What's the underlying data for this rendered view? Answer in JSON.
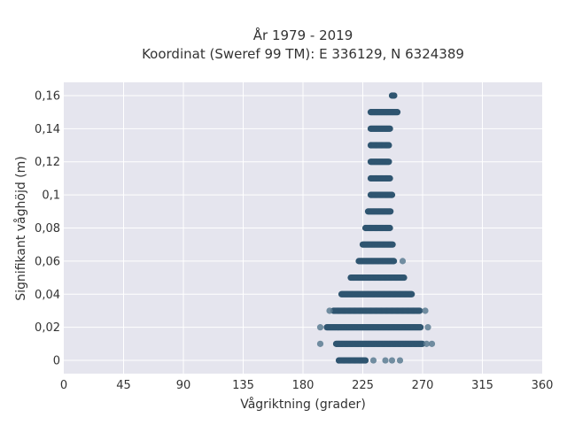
{
  "chart_data": {
    "type": "scatter",
    "title_line1": "År 1979 - 2019",
    "title_line2": "Koordinat (Sweref 99 TM): E 336129, N 6324389",
    "xlabel": "Vågriktning (grader)",
    "ylabel": "Signifikant våghöjd (m)",
    "xlim": [
      0,
      360
    ],
    "ylim": [
      -0.008,
      0.168
    ],
    "x_ticks": [
      0,
      45,
      90,
      135,
      180,
      225,
      270,
      315,
      360
    ],
    "x_tick_labels": [
      "0",
      "45",
      "90",
      "135",
      "180",
      "225",
      "270",
      "315",
      "360"
    ],
    "y_ticks": [
      0,
      0.02,
      0.04,
      0.06,
      0.08,
      0.1,
      0.12,
      0.14,
      0.16
    ],
    "y_tick_labels": [
      "0",
      "0,02",
      "0,04",
      "0,06",
      "0,08",
      "0,1",
      "0,12",
      "0,14",
      "0,16"
    ],
    "grid": true,
    "colors": {
      "marker": "#2f5570",
      "plot_background": "#e5e5ee",
      "grid": "#ffffff"
    },
    "bands": [
      {
        "y": 0,
        "x_min": 207,
        "x_max": 227,
        "isolated_x": [
          233,
          242,
          247,
          253
        ]
      },
      {
        "y": 0.01,
        "x_min": 205,
        "x_max": 270,
        "isolated_x": [
          193,
          273,
          277
        ]
      },
      {
        "y": 0.02,
        "x_min": 198,
        "x_max": 269,
        "isolated_x": [
          193,
          274
        ]
      },
      {
        "y": 0.03,
        "x_min": 203,
        "x_max": 268,
        "isolated_x": [
          200,
          272
        ]
      },
      {
        "y": 0.04,
        "x_min": 209,
        "x_max": 262,
        "isolated_x": []
      },
      {
        "y": 0.05,
        "x_min": 216,
        "x_max": 256,
        "isolated_x": []
      },
      {
        "y": 0.06,
        "x_min": 222,
        "x_max": 249,
        "isolated_x": [
          255
        ]
      },
      {
        "y": 0.07,
        "x_min": 225,
        "x_max": 248,
        "isolated_x": []
      },
      {
        "y": 0.08,
        "x_min": 227,
        "x_max": 246,
        "isolated_x": []
      },
      {
        "y": 0.09,
        "x_min": 229,
        "x_max": 246,
        "isolated_x": []
      },
      {
        "y": 0.1,
        "x_min": 231,
        "x_max": 247,
        "isolated_x": []
      },
      {
        "y": 0.11,
        "x_min": 231,
        "x_max": 246,
        "isolated_x": []
      },
      {
        "y": 0.12,
        "x_min": 231,
        "x_max": 245,
        "isolated_x": []
      },
      {
        "y": 0.13,
        "x_min": 231,
        "x_max": 245,
        "isolated_x": []
      },
      {
        "y": 0.14,
        "x_min": 231,
        "x_max": 246,
        "isolated_x": []
      },
      {
        "y": 0.15,
        "x_min": 231,
        "x_max": 251,
        "isolated_x": []
      },
      {
        "y": 0.16,
        "x_min": 247,
        "x_max": 249,
        "isolated_x": []
      }
    ]
  }
}
